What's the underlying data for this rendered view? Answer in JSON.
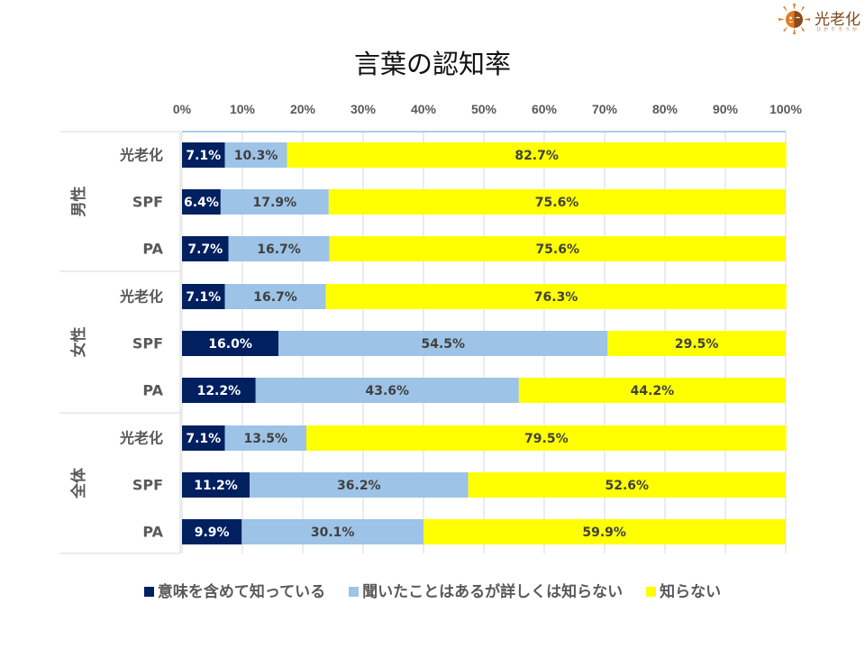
{
  "logo": {
    "text": "光老化",
    "sub": "ひかりろうか"
  },
  "chart_data": {
    "type": "bar",
    "orientation": "horizontal",
    "stacked": "100%",
    "title": "言葉の認知率",
    "xlabel": "",
    "ylabel": "",
    "xlim": [
      0,
      100
    ],
    "x_ticks": [
      "0%",
      "10%",
      "20%",
      "30%",
      "40%",
      "50%",
      "60%",
      "70%",
      "80%",
      "90%",
      "100%"
    ],
    "grid": true,
    "legend_position": "bottom",
    "groups": [
      {
        "name": "男性",
        "categories": [
          "光老化",
          "SPF",
          "PA"
        ]
      },
      {
        "name": "女性",
        "categories": [
          "光老化",
          "SPF",
          "PA"
        ]
      },
      {
        "name": "全体",
        "categories": [
          "光老化",
          "SPF",
          "PA"
        ]
      }
    ],
    "categories": [
      "男性 光老化",
      "男性 SPF",
      "男性 PA",
      "女性 光老化",
      "女性 SPF",
      "女性 PA",
      "全体 光老化",
      "全体 SPF",
      "全体 PA"
    ],
    "series": [
      {
        "name": "意味を含めて知っている",
        "color": "#002060",
        "label_color": "#ffffff",
        "values": [
          7.1,
          6.4,
          7.7,
          7.1,
          16.0,
          12.2,
          7.1,
          11.2,
          9.9
        ]
      },
      {
        "name": "聞いたことはあるが詳しくは知らない",
        "color": "#9dc3e6",
        "label_color": "#404040",
        "values": [
          10.3,
          17.9,
          16.7,
          16.7,
          54.5,
          43.6,
          13.5,
          36.2,
          30.1
        ]
      },
      {
        "name": "知らない",
        "color": "#ffff00",
        "label_color": "#404040",
        "values": [
          82.7,
          75.6,
          75.6,
          76.3,
          29.5,
          44.2,
          79.5,
          52.6,
          59.9
        ]
      }
    ]
  }
}
